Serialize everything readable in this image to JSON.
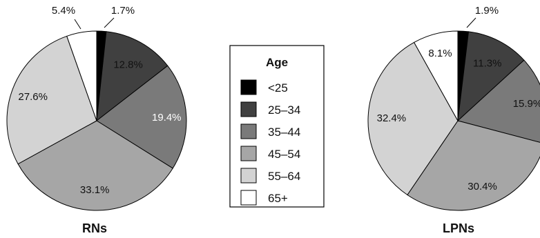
{
  "chart_data": [
    {
      "type": "pie",
      "title": "RNs",
      "categories": [
        "<25",
        "25–34",
        "35–44",
        "45–54",
        "55–64",
        "65+"
      ],
      "values": [
        1.7,
        12.8,
        19.4,
        33.1,
        27.6,
        5.4
      ],
      "labels": [
        "1.7%",
        "12.8%",
        "19.4%",
        "33.1%",
        "27.6%",
        "5.4%"
      ]
    },
    {
      "type": "pie",
      "title": "LPNs",
      "categories": [
        "<25",
        "25–34",
        "35–44",
        "45–54",
        "55–64",
        "65+"
      ],
      "values": [
        1.9,
        11.3,
        15.9,
        30.4,
        32.4,
        8.1
      ],
      "labels": [
        "1.9%",
        "11.3%",
        "15.9%",
        "30.4%",
        "32.4%",
        "8.1%"
      ]
    }
  ],
  "legend": {
    "title": "Age",
    "items": [
      {
        "label": "<25",
        "color": "#000000"
      },
      {
        "label": "25–34",
        "color": "#404040"
      },
      {
        "label": "35–44",
        "color": "#7a7a7a"
      },
      {
        "label": "45–54",
        "color": "#a6a6a6"
      },
      {
        "label": "55–64",
        "color": "#d3d3d3"
      },
      {
        "label": "65+",
        "color": "#ffffff"
      }
    ]
  }
}
